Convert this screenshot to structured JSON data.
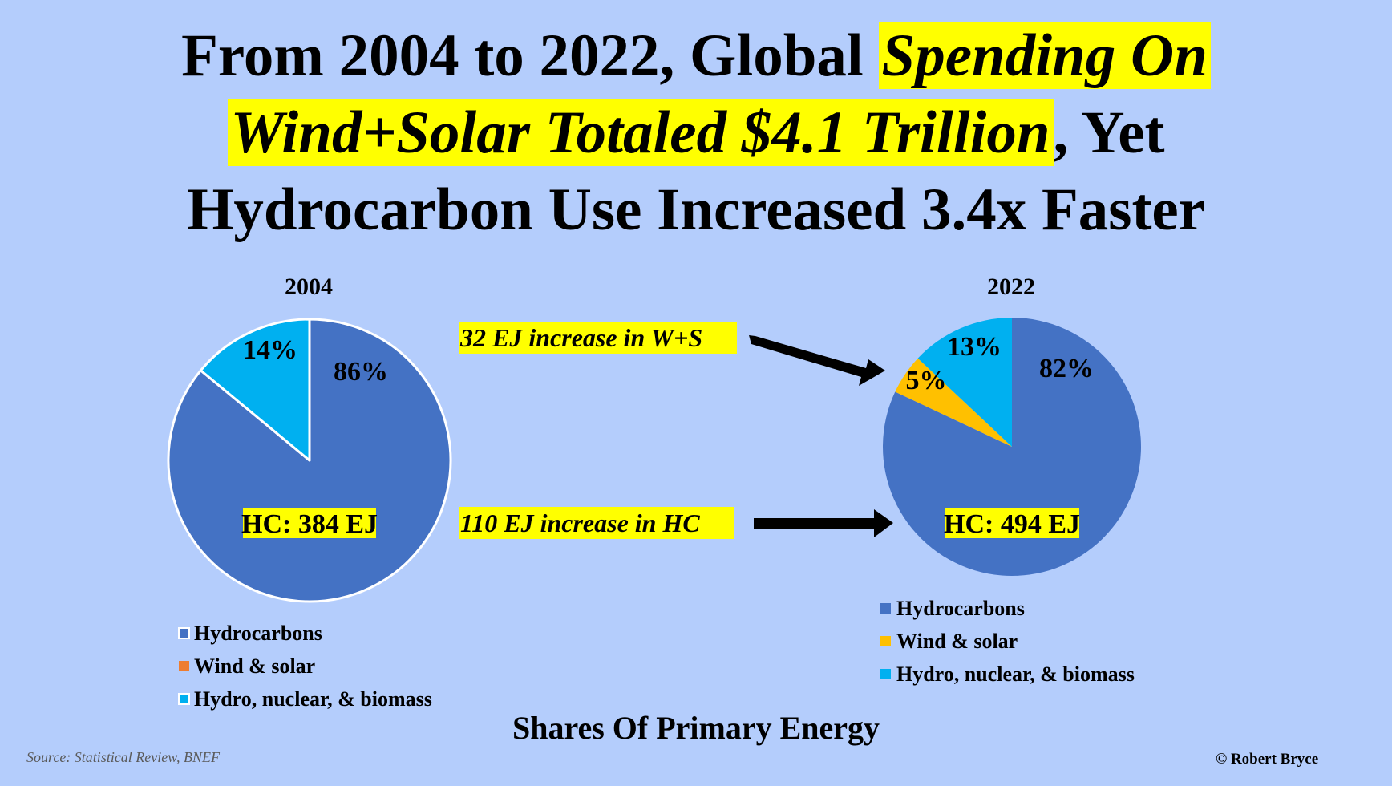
{
  "title": {
    "part1": "From 2004 to 2022, Global ",
    "highlight1": "Spending On",
    "highlight2": "Wind+Solar Totaled $4.1 Trillion",
    "part2": ", Yet",
    "line3": "Hydrocarbon Use Increased 3.4x Faster"
  },
  "annotations": {
    "ws_increase": "32 EJ increase in W+S",
    "hc_increase": "110 EJ increase in HC"
  },
  "footer": {
    "chart_title": "Shares Of Primary Energy",
    "source": "Source: Statistical Review, BNEF",
    "copyright": "© Robert Bryce"
  },
  "colors": {
    "background": "#b4cdfc",
    "hydrocarbons": "#4472c4",
    "wind_solar": "#ffc000",
    "hydro_nuclear_biomass": "#00b0f0",
    "highlight": "#ffff00",
    "legend_wind_solar_2004": "#ed7d31"
  },
  "chart_data": [
    {
      "type": "pie",
      "title": "2004",
      "categories": [
        "Hydrocarbons",
        "Wind & solar",
        "Hydro, nuclear, & biomass"
      ],
      "values": [
        86,
        0,
        14
      ],
      "labels": [
        "86%",
        "",
        "14%"
      ],
      "center_label": "HC: 384 EJ",
      "legend": [
        "Hydrocarbons",
        "Wind & solar",
        "Hydro, nuclear, & biomass"
      ],
      "legend_placement": "bottom"
    },
    {
      "type": "pie",
      "title": "2022",
      "categories": [
        "Hydrocarbons",
        "Wind & solar",
        "Hydro, nuclear, & biomass"
      ],
      "values": [
        82,
        5,
        13
      ],
      "labels": [
        "82%",
        "5%",
        "13%"
      ],
      "center_label": "HC: 494 EJ",
      "legend": [
        "Hydrocarbons",
        "Wind & solar",
        "Hydro, nuclear, & biomass"
      ],
      "legend_placement": "bottom"
    }
  ]
}
